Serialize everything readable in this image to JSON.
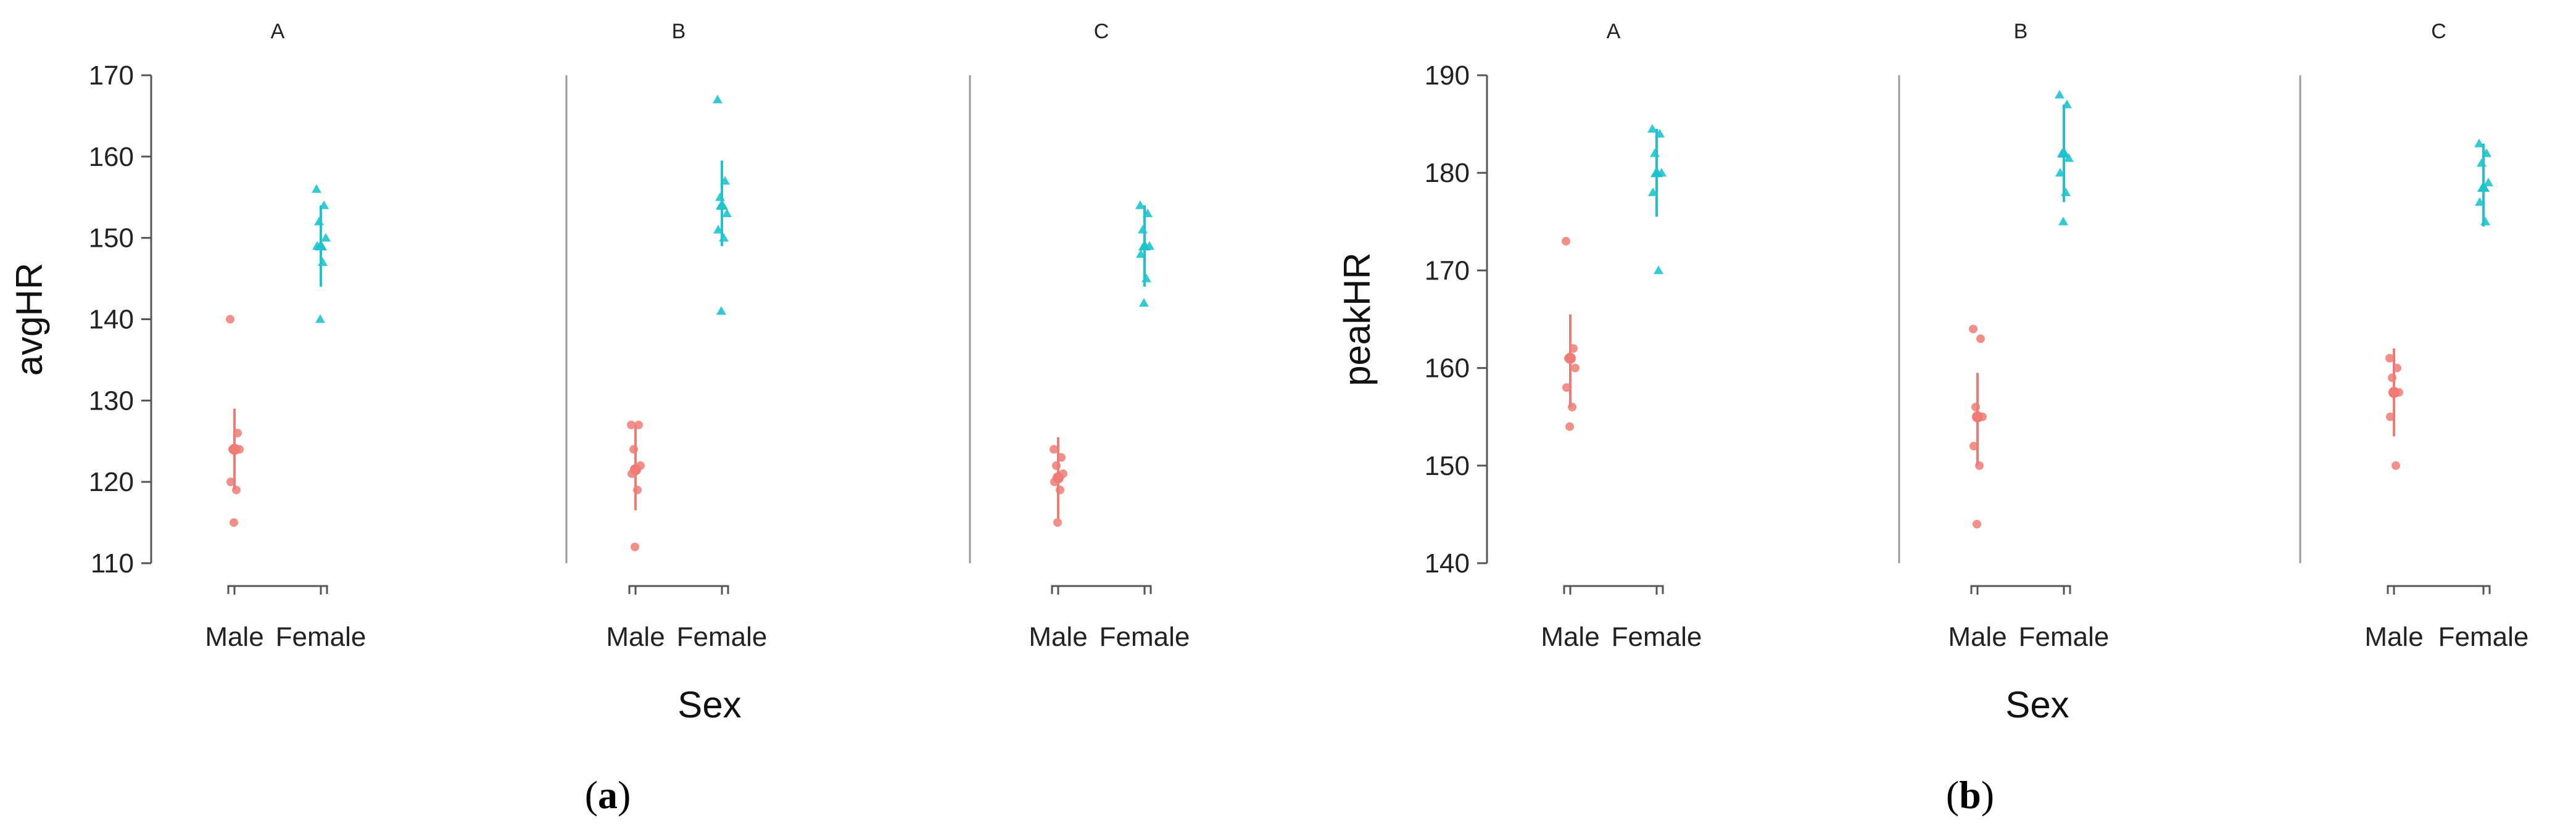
{
  "figure": {
    "colors": {
      "male": "#F07B74",
      "female": "#1FC3CD",
      "axis": "#555555",
      "separator": "#999999"
    },
    "xlabel": "Sex",
    "categories": [
      "Male",
      "Female"
    ]
  },
  "chart_data": [
    {
      "type": "scatter",
      "panel_label": {
        "open": "(",
        "letter": "a",
        "close": ")"
      },
      "ylabel": "avgHR",
      "xlabel": "Sex",
      "ylim": [
        110,
        170
      ],
      "yticks": [
        110,
        120,
        130,
        140,
        150,
        160,
        170
      ],
      "categories": [
        "Male",
        "Female"
      ],
      "facets": [
        {
          "label": "A",
          "Male": {
            "points": [
              140,
              126,
              124,
              124,
              120,
              119,
              115
            ],
            "mean": 124,
            "ci": [
              119,
              129
            ]
          },
          "Female": {
            "points": [
              156,
              154,
              152,
              150,
              149,
              147,
              140
            ],
            "mean": 149,
            "ci": [
              144,
              154
            ]
          }
        },
        {
          "label": "B",
          "Male": {
            "points": [
              127,
              127,
              124,
              122,
              121,
              119,
              112
            ],
            "mean": 121.5,
            "ci": [
              116.5,
              127
            ]
          },
          "Female": {
            "points": [
              167,
              157,
              155,
              153,
              151,
              150,
              141
            ],
            "mean": 154,
            "ci": [
              149,
              159.5
            ]
          }
        },
        {
          "label": "C",
          "Male": {
            "points": [
              124,
              123,
              122,
              121,
              120,
              119,
              115
            ],
            "mean": 120.5,
            "ci": [
              115.5,
              125.5
            ]
          },
          "Female": {
            "points": [
              154,
              153,
              151,
              149,
              148,
              145,
              142
            ],
            "mean": 149,
            "ci": [
              144,
              154
            ]
          }
        }
      ]
    },
    {
      "type": "scatter",
      "panel_label": {
        "open": "(",
        "letter": "b",
        "close": ")"
      },
      "ylabel": "peakHR",
      "xlabel": "Sex",
      "ylim": [
        140,
        190
      ],
      "yticks": [
        140,
        150,
        160,
        170,
        180,
        190
      ],
      "categories": [
        "Male",
        "Female"
      ],
      "facets": [
        {
          "label": "A",
          "Male": {
            "points": [
              173,
              162,
              161,
              160,
              158,
              156,
              154
            ],
            "mean": 161,
            "ci": [
              156,
              165.5
            ]
          },
          "Female": {
            "points": [
              184.5,
              184,
              182,
              180,
              178,
              170
            ],
            "mean": 180,
            "ci": [
              175.5,
              184.5
            ]
          }
        },
        {
          "label": "B",
          "Male": {
            "points": [
              164,
              163,
              156,
              155,
              152,
              150,
              144
            ],
            "mean": 155,
            "ci": [
              150,
              159.5
            ]
          },
          "Female": {
            "points": [
              188,
              187,
              182,
              181.5,
              180,
              178,
              175
            ],
            "mean": 182,
            "ci": [
              177,
              187
            ]
          }
        },
        {
          "label": "C",
          "Male": {
            "points": [
              161,
              160,
              159,
              157.5,
              155,
              150
            ],
            "mean": 157.5,
            "ci": [
              153,
              162
            ]
          },
          "Female": {
            "points": [
              183,
              182,
              181,
              179,
              177,
              175
            ],
            "mean": 178.5,
            "ci": [
              174.5,
              183
            ]
          }
        }
      ]
    }
  ]
}
